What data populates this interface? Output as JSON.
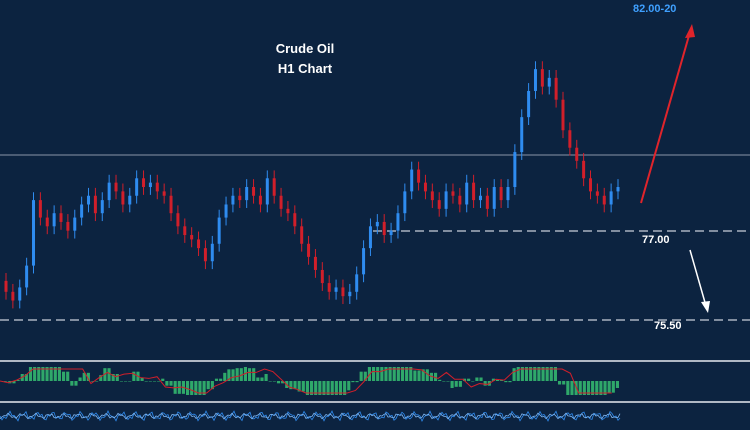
{
  "header": {
    "title_line1": "Crude Oil",
    "title_line2": "H1 Chart"
  },
  "levels": {
    "target": "82.00-20",
    "support1": "77.00",
    "support2": "75.50"
  },
  "chart_data": {
    "type": "candlestick",
    "title": "Crude Oil H1 Chart",
    "ylim": [
      75.2,
      82.3
    ],
    "reference_price": 78.4,
    "levels": [
      77.0,
      75.5
    ],
    "target": "82.00-20",
    "projections": [
      {
        "direction": "up",
        "from": 77.3,
        "to": 82.1
      },
      {
        "direction": "down",
        "from": 76.8,
        "to": 75.5
      }
    ],
    "close": [
      75.8,
      75.6,
      75.9,
      76.4,
      77.9,
      77.5,
      77.3,
      77.6,
      77.4,
      77.2,
      77.5,
      77.8,
      78.0,
      77.6,
      77.9,
      78.3,
      78.1,
      77.8,
      78.0,
      78.4,
      78.2,
      78.3,
      78.1,
      78.0,
      77.6,
      77.3,
      77.1,
      77.0,
      76.8,
      76.5,
      76.9,
      77.5,
      77.8,
      78.0,
      77.9,
      78.2,
      78.0,
      77.8,
      78.4,
      78.0,
      77.7,
      77.6,
      77.3,
      76.9,
      76.6,
      76.3,
      76.0,
      75.8,
      75.9,
      75.7,
      75.8,
      76.2,
      76.8,
      77.3,
      77.4,
      77.1,
      77.2,
      77.6,
      78.1,
      78.6,
      78.3,
      78.1,
      77.9,
      77.7,
      78.1,
      78.0,
      77.8,
      78.3,
      77.9,
      78.0,
      77.7,
      78.2,
      77.9,
      78.2,
      79.0,
      79.8,
      80.4,
      80.9,
      80.5,
      80.7,
      80.2,
      79.5,
      79.1,
      78.8,
      78.4,
      78.1,
      78.0,
      77.8,
      78.1,
      78.2
    ]
  }
}
